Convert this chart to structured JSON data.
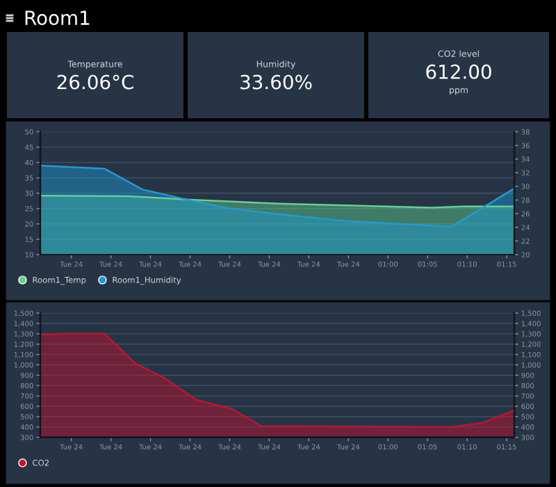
{
  "chart_data": [
    {
      "type": "other",
      "title": "Room1"
    },
    {
      "type": "other",
      "title": "Temperature",
      "annotations": [
        "26.06°C"
      ]
    },
    {
      "type": "other",
      "title": "Humidity",
      "annotations": [
        "33.60%"
      ]
    },
    {
      "type": "other",
      "title": "CO2 level",
      "annotations": [
        "612.00",
        "ppm"
      ]
    },
    {
      "type": "area",
      "legend": "bottom left",
      "grid": "y",
      "xlim": [
        0.268,
        1.266
      ],
      "xticks": [
        {
          "value": 0.3333,
          "label": "Tue 24"
        },
        {
          "value": 0.4167,
          "label": "Tue 24"
        },
        {
          "value": 0.5,
          "label": "Tue 24"
        },
        {
          "value": 0.5833,
          "label": "Tue 24"
        },
        {
          "value": 0.6667,
          "label": "Tue 24"
        },
        {
          "value": 0.75,
          "label": "Tue 24"
        },
        {
          "value": 0.8333,
          "label": "Tue 24"
        },
        {
          "value": 0.9167,
          "label": "Tue 24"
        },
        {
          "value": 1,
          "label": "01:00"
        },
        {
          "value": 1.0833,
          "label": "01:05"
        },
        {
          "value": 1.1667,
          "label": "01:10"
        },
        {
          "value": 1.25,
          "label": "01:15"
        }
      ],
      "ylim": [
        10,
        50
      ],
      "yticks": [
        10,
        15,
        20,
        25,
        30,
        35,
        40,
        45,
        50
      ],
      "y2lim": [
        20,
        38
      ],
      "y2ticks": [
        20,
        22,
        24,
        26,
        28,
        30,
        32,
        34,
        36,
        38
      ],
      "series": [
        {
          "name": "Room1_Temp",
          "color": "#5fd38d",
          "x": [
            0.268,
            0.454,
            0.583,
            0.77,
            1.092,
            1.158,
            1.266
          ],
          "values": [
            29.2,
            29.0,
            27.9,
            26.6,
            25.3,
            25.7,
            25.7
          ]
        },
        {
          "name": "Room1_Humidity",
          "color": "#1e9bd7",
          "x": [
            0.268,
            0.403,
            0.483,
            0.583,
            0.664,
            0.77,
            0.913,
            1.133,
            1.266
          ],
          "values": [
            39.0,
            38.0,
            31.2,
            27.7,
            25.1,
            23.2,
            20.9,
            19.1,
            31.5
          ]
        }
      ]
    },
    {
      "type": "area",
      "legend": "bottom left",
      "grid": "y",
      "xlim": [
        0.268,
        1.266
      ],
      "xticks": [
        {
          "value": 0.3333,
          "label": "Tue 24"
        },
        {
          "value": 0.4167,
          "label": "Tue 24"
        },
        {
          "value": 0.5,
          "label": "Tue 24"
        },
        {
          "value": 0.5833,
          "label": "Tue 24"
        },
        {
          "value": 0.6667,
          "label": "Tue 24"
        },
        {
          "value": 0.75,
          "label": "Tue 24"
        },
        {
          "value": 0.8333,
          "label": "Tue 24"
        },
        {
          "value": 0.9167,
          "label": "Tue 24"
        },
        {
          "value": 1,
          "label": "01:00"
        },
        {
          "value": 1.0833,
          "label": "01:05"
        },
        {
          "value": 1.1667,
          "label": "01:10"
        },
        {
          "value": 1.25,
          "label": "01:15"
        }
      ],
      "ylim": [
        300,
        1500
      ],
      "yticks": [
        300,
        400,
        500,
        600,
        700,
        800,
        900,
        {
          "value": 1000,
          "label": "1,000"
        },
        {
          "value": 1100,
          "label": "1,100"
        },
        {
          "value": 1200,
          "label": "1,200"
        },
        {
          "value": 1300,
          "label": "1,300"
        },
        {
          "value": 1400,
          "label": "1,400"
        },
        {
          "value": 1500,
          "label": "1,500"
        }
      ],
      "y2lim": [
        300,
        1500
      ],
      "y2ticks": [
        300,
        400,
        500,
        600,
        700,
        800,
        900,
        {
          "value": 1000,
          "label": "1,000"
        },
        {
          "value": 1100,
          "label": "1,100"
        },
        {
          "value": 1200,
          "label": "1,200"
        },
        {
          "value": 1300,
          "label": "1,300"
        },
        {
          "value": 1400,
          "label": "1,400"
        },
        {
          "value": 1500,
          "label": "1,500"
        }
      ],
      "series": [
        {
          "name": "CO2",
          "color": "#c8102e",
          "x": [
            0.268,
            0.312,
            0.403,
            0.469,
            0.527,
            0.597,
            0.669,
            0.733,
            1.133,
            1.199,
            1.266
          ],
          "values": [
            1290,
            1300,
            1300,
            1010,
            880,
            660,
            580,
            410,
            400,
            440,
            560
          ]
        }
      ]
    }
  ]
}
